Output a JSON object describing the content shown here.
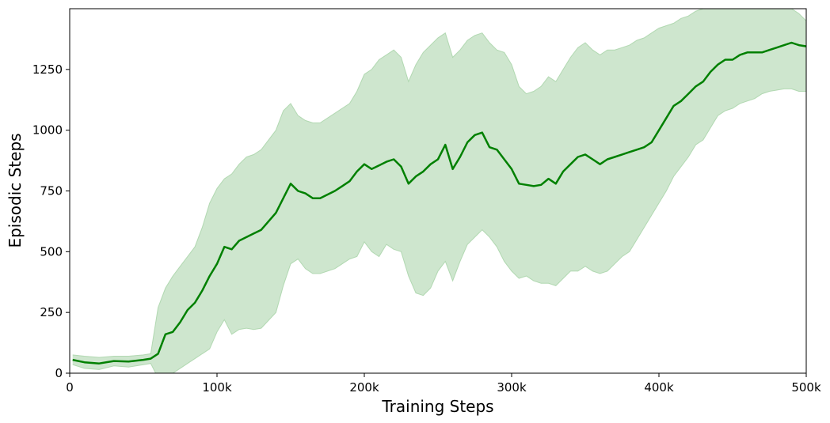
{
  "chart_data": {
    "type": "line",
    "title": "",
    "xlabel": "Training Steps",
    "ylabel": "Episodic Steps",
    "xlim": [
      0,
      500000
    ],
    "ylim": [
      0,
      1500
    ],
    "x_ticks": [
      {
        "value": 0,
        "label": "0"
      },
      {
        "value": 100000,
        "label": "100k"
      },
      {
        "value": 200000,
        "label": "200k"
      },
      {
        "value": 300000,
        "label": "300k"
      },
      {
        "value": 400000,
        "label": "400k"
      },
      {
        "value": 500000,
        "label": "500k"
      }
    ],
    "y_ticks": [
      {
        "value": 0,
        "label": "0"
      },
      {
        "value": 250,
        "label": "250"
      },
      {
        "value": 500,
        "label": "500"
      },
      {
        "value": 750,
        "label": "750"
      },
      {
        "value": 1000,
        "label": "1000"
      },
      {
        "value": 1250,
        "label": "1250"
      }
    ],
    "grid": false,
    "colors": {
      "line": "#008000",
      "band": "#a5d2a5"
    },
    "series": [
      {
        "x": [
          2000,
          10000,
          20000,
          30000,
          40000,
          50000,
          55000,
          60000,
          65000,
          70000,
          75000,
          80000,
          85000,
          90000,
          95000,
          100000,
          105000,
          110000,
          115000,
          120000,
          125000,
          130000,
          140000,
          145000,
          150000,
          155000,
          160000,
          165000,
          170000,
          180000,
          185000,
          190000,
          195000,
          200000,
          205000,
          210000,
          215000,
          220000,
          225000,
          230000,
          235000,
          240000,
          245000,
          250000,
          255000,
          260000,
          265000,
          270000,
          275000,
          280000,
          285000,
          290000,
          295000,
          300000,
          305000,
          310000,
          315000,
          320000,
          325000,
          330000,
          335000,
          340000,
          345000,
          350000,
          355000,
          360000,
          365000,
          370000,
          375000,
          380000,
          385000,
          390000,
          395000,
          400000,
          405000,
          410000,
          415000,
          420000,
          425000,
          430000,
          435000,
          440000,
          445000,
          450000,
          455000,
          460000,
          465000,
          470000,
          475000,
          480000,
          485000,
          490000,
          495000,
          500000
        ],
        "y": [
          55,
          45,
          40,
          50,
          48,
          55,
          60,
          80,
          160,
          170,
          210,
          260,
          290,
          340,
          400,
          450,
          520,
          510,
          545,
          560,
          575,
          590,
          660,
          720,
          780,
          750,
          740,
          720,
          720,
          750,
          770,
          790,
          830,
          860,
          840,
          855,
          870,
          880,
          850,
          780,
          810,
          830,
          860,
          880,
          940,
          840,
          890,
          950,
          980,
          990,
          930,
          920,
          880,
          840,
          780,
          775,
          770,
          775,
          800,
          780,
          830,
          860,
          890,
          900,
          880,
          860,
          880,
          890,
          900,
          910,
          920,
          930,
          950,
          1000,
          1050,
          1100,
          1120,
          1150,
          1180,
          1200,
          1240,
          1270,
          1290,
          1290,
          1310,
          1320,
          1320,
          1320,
          1330,
          1340,
          1350,
          1360,
          1350,
          1345
        ],
        "lower": [
          35,
          20,
          15,
          30,
          25,
          35,
          40,
          -20,
          -10,
          0,
          20,
          40,
          60,
          80,
          100,
          170,
          220,
          160,
          180,
          185,
          180,
          185,
          250,
          360,
          450,
          470,
          430,
          410,
          410,
          430,
          450,
          470,
          480,
          540,
          500,
          480,
          530,
          510,
          500,
          400,
          330,
          320,
          350,
          420,
          460,
          380,
          460,
          530,
          560,
          590,
          560,
          520,
          460,
          420,
          390,
          400,
          380,
          370,
          370,
          360,
          390,
          420,
          420,
          440,
          420,
          410,
          420,
          450,
          480,
          500,
          550,
          600,
          650,
          700,
          750,
          810,
          850,
          890,
          940,
          960,
          1010,
          1060,
          1080,
          1090,
          1110,
          1120,
          1130,
          1150,
          1160,
          1165,
          1170,
          1170,
          1160,
          1160
        ],
        "upper": [
          75,
          70,
          65,
          70,
          70,
          75,
          80,
          270,
          350,
          400,
          440,
          480,
          520,
          600,
          700,
          760,
          800,
          820,
          860,
          890,
          900,
          920,
          1000,
          1080,
          1110,
          1060,
          1040,
          1030,
          1030,
          1070,
          1090,
          1110,
          1160,
          1230,
          1250,
          1290,
          1310,
          1330,
          1300,
          1200,
          1270,
          1320,
          1350,
          1380,
          1400,
          1300,
          1330,
          1370,
          1390,
          1400,
          1360,
          1330,
          1320,
          1270,
          1180,
          1150,
          1160,
          1180,
          1220,
          1200,
          1250,
          1300,
          1340,
          1360,
          1330,
          1310,
          1330,
          1330,
          1340,
          1350,
          1370,
          1380,
          1400,
          1420,
          1430,
          1440,
          1460,
          1470,
          1490,
          1500,
          1500,
          1500,
          1500,
          1500,
          1500,
          1500,
          1500,
          1500,
          1500,
          1500,
          1500,
          1500,
          1480,
          1450
        ]
      }
    ]
  }
}
